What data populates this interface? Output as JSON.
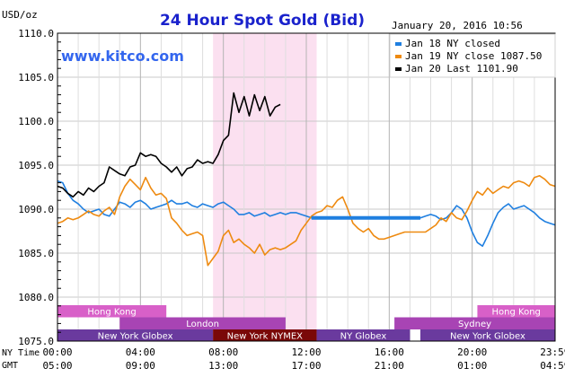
{
  "chart_data": {
    "type": "line",
    "title": "24 Hour Spot Gold (Bid)",
    "ylabel": "USD/oz",
    "timestamp": "January 20, 2016 10:56",
    "watermark": "www.kitco.com",
    "ylim": [
      1075,
      1110
    ],
    "yticks": [
      "1110.0",
      "1105.0",
      "1100.0",
      "1095.0",
      "1090.0",
      "1085.0",
      "1080.0",
      "1075.0"
    ],
    "xlim_hours": [
      0,
      24
    ],
    "xticks_ny": [
      "00:00",
      "04:00",
      "08:00",
      "12:00",
      "16:00",
      "20:00",
      "23:59"
    ],
    "xticks_gmt": [
      "05:00",
      "09:00",
      "13:00",
      "17:00",
      "21:00",
      "01:00",
      "04:59"
    ],
    "x_row_labels": [
      "NY Time",
      "GMT"
    ],
    "grid": true,
    "highlight_band": [
      7.5,
      12.5
    ],
    "legend_position": "top-right",
    "markets": [
      {
        "name": "Hong Kong",
        "row": 0,
        "segments": [
          [
            0,
            5.25
          ],
          [
            20.25,
            24
          ]
        ]
      },
      {
        "name": "London",
        "row": 1,
        "segments": [
          [
            3,
            11
          ]
        ]
      },
      {
        "name": "Sydney",
        "row": 1,
        "segments": [
          [
            16.25,
            24
          ]
        ]
      },
      {
        "name": "New York Globex",
        "row": 2,
        "segments": [
          [
            0,
            7.5
          ],
          [
            17.5,
            24
          ]
        ]
      },
      {
        "name": "New York NYMEX",
        "row": 2,
        "segments": [
          [
            7.5,
            12.5
          ]
        ]
      },
      {
        "name": "NY Globex",
        "row": 2,
        "segments": [
          [
            12.5,
            17
          ]
        ]
      }
    ],
    "series": [
      {
        "name": "Jan 18 NY closed",
        "color": "#1f7fe0",
        "x": [
          0,
          0.25,
          0.5,
          0.75,
          1,
          1.25,
          1.5,
          1.75,
          2,
          2.25,
          2.5,
          2.75,
          3,
          3.25,
          3.5,
          3.75,
          4,
          4.25,
          4.5,
          4.75,
          5,
          5.25,
          5.5,
          5.75,
          6,
          6.25,
          6.5,
          6.75,
          7,
          7.25,
          7.5,
          7.75,
          8,
          8.25,
          8.5,
          8.75,
          9,
          9.25,
          9.5,
          9.75,
          10,
          10.25,
          10.5,
          10.75,
          11,
          11.25,
          11.5,
          11.75,
          12,
          12.25,
          12.5,
          12.75,
          13,
          13.25,
          13.5,
          13.75,
          14,
          14.25,
          14.5,
          14.75,
          15,
          15.25,
          15.5,
          15.75,
          16,
          16.25,
          16.5,
          16.75,
          17,
          17.25,
          17.5,
          17.75,
          18,
          18.25,
          18.5,
          18.75,
          19,
          19.25,
          19.5,
          19.75,
          20,
          20.25,
          20.5,
          20.75,
          21,
          21.25,
          21.5,
          21.75,
          22,
          22.25,
          22.5,
          22.75,
          23,
          23.25,
          23.5,
          23.75,
          24
        ],
        "values": [
          1093.2,
          1093.0,
          1091.8,
          1091.0,
          1090.6,
          1090.0,
          1089.6,
          1089.8,
          1090.0,
          1089.4,
          1089.2,
          1090.0,
          1090.8,
          1090.6,
          1090.2,
          1090.8,
          1091.0,
          1090.6,
          1090.0,
          1090.2,
          1090.4,
          1090.6,
          1091.0,
          1090.6,
          1090.6,
          1090.8,
          1090.4,
          1090.2,
          1090.6,
          1090.4,
          1090.2,
          1090.6,
          1090.8,
          1090.4,
          1090.0,
          1089.4,
          1089.4,
          1089.6,
          1089.2,
          1089.4,
          1089.6,
          1089.2,
          1089.4,
          1089.6,
          1089.4,
          1089.6,
          1089.6,
          1089.4,
          1089.2,
          1089.0,
          1089.0,
          1089.0,
          1089.0,
          1089.0,
          1089.0,
          1089.0,
          1089.0,
          1089.0,
          1089.0,
          1089.0,
          1089.0,
          1089.0,
          1089.0,
          1089.0,
          1089.0,
          1089.0,
          1089.0,
          1089.0,
          1089.0,
          1089.0,
          1089.0,
          1089.2,
          1089.4,
          1089.2,
          1088.8,
          1089.0,
          1089.6,
          1090.4,
          1090.0,
          1089.0,
          1087.4,
          1086.2,
          1085.8,
          1087.0,
          1088.4,
          1089.6,
          1090.2,
          1090.6,
          1090.0,
          1090.2,
          1090.4,
          1090.0,
          1089.6,
          1089.0,
          1088.6,
          1088.4,
          1088.2
        ]
      },
      {
        "name": "Jan 19 NY close 1087.50",
        "color": "#ee8a10",
        "x": [
          0,
          0.25,
          0.5,
          0.75,
          1,
          1.25,
          1.5,
          1.75,
          2,
          2.25,
          2.5,
          2.75,
          3,
          3.25,
          3.5,
          3.75,
          4,
          4.25,
          4.5,
          4.75,
          5,
          5.25,
          5.5,
          5.75,
          6,
          6.25,
          6.5,
          6.75,
          7,
          7.25,
          7.5,
          7.75,
          8,
          8.25,
          8.5,
          8.75,
          9,
          9.25,
          9.5,
          9.75,
          10,
          10.25,
          10.5,
          10.75,
          11,
          11.25,
          11.5,
          11.75,
          12,
          12.25,
          12.5,
          12.75,
          13,
          13.25,
          13.5,
          13.75,
          14,
          14.25,
          14.5,
          14.75,
          15,
          15.25,
          15.5,
          15.75,
          16,
          16.25,
          16.5,
          16.75,
          17,
          17.25,
          17.5,
          17.75,
          18,
          18.25,
          18.5,
          18.75,
          19,
          19.25,
          19.5,
          19.75,
          20,
          20.25,
          20.5,
          20.75,
          21,
          21.25,
          21.5,
          21.75,
          22,
          22.25,
          22.5,
          22.75,
          23,
          23.25,
          23.5,
          23.75,
          24
        ],
        "values": [
          1088.4,
          1088.6,
          1089.0,
          1088.8,
          1089.0,
          1089.4,
          1089.8,
          1089.4,
          1089.2,
          1089.8,
          1090.2,
          1089.4,
          1091.4,
          1092.6,
          1093.4,
          1092.8,
          1092.2,
          1093.6,
          1092.4,
          1091.6,
          1091.8,
          1091.2,
          1089.0,
          1088.4,
          1087.6,
          1087.0,
          1087.2,
          1087.4,
          1087.0,
          1083.6,
          1084.4,
          1085.2,
          1087.0,
          1087.6,
          1086.2,
          1086.6,
          1086.0,
          1085.6,
          1085.0,
          1086.0,
          1084.8,
          1085.4,
          1085.6,
          1085.4,
          1085.6,
          1086.0,
          1086.4,
          1087.6,
          1088.4,
          1089.2,
          1089.6,
          1089.8,
          1090.4,
          1090.2,
          1091.0,
          1091.4,
          1090.0,
          1088.4,
          1087.8,
          1087.4,
          1087.8,
          1087.0,
          1086.6,
          1086.6,
          1086.8,
          1087.0,
          1087.2,
          1087.4,
          1087.4,
          1087.4,
          1087.4,
          1087.4,
          1087.8,
          1088.2,
          1089.0,
          1088.6,
          1089.6,
          1089.0,
          1088.8,
          1089.8,
          1091.0,
          1092.0,
          1091.6,
          1092.4,
          1091.8,
          1092.2,
          1092.6,
          1092.4,
          1093.0,
          1093.2,
          1093.0,
          1092.6,
          1093.6,
          1093.8,
          1093.4,
          1092.8,
          1092.6
        ]
      },
      {
        "name": "Jan 20 Last 1101.90",
        "color": "#000000",
        "x": [
          0,
          0.25,
          0.5,
          0.75,
          1,
          1.25,
          1.5,
          1.75,
          2,
          2.25,
          2.5,
          2.75,
          3,
          3.25,
          3.5,
          3.75,
          4,
          4.25,
          4.5,
          4.75,
          5,
          5.25,
          5.5,
          5.75,
          6,
          6.25,
          6.5,
          6.75,
          7,
          7.25,
          7.5,
          7.75,
          8,
          8.25,
          8.5,
          8.75,
          9,
          9.25,
          9.5,
          9.75,
          10,
          10.25,
          10.5,
          10.75
        ],
        "values": [
          1092.6,
          1092.4,
          1091.8,
          1091.4,
          1092.0,
          1091.6,
          1092.4,
          1092.0,
          1092.6,
          1093.0,
          1094.8,
          1094.4,
          1094.0,
          1093.8,
          1094.8,
          1095.0,
          1096.4,
          1096.0,
          1096.2,
          1096.0,
          1095.2,
          1094.8,
          1094.2,
          1094.8,
          1093.8,
          1094.6,
          1094.8,
          1095.6,
          1095.2,
          1095.4,
          1095.2,
          1096.2,
          1097.8,
          1098.4,
          1103.2,
          1101.0,
          1102.8,
          1100.6,
          1103.0,
          1101.2,
          1102.8,
          1100.6,
          1101.6,
          1101.9
        ]
      }
    ]
  }
}
